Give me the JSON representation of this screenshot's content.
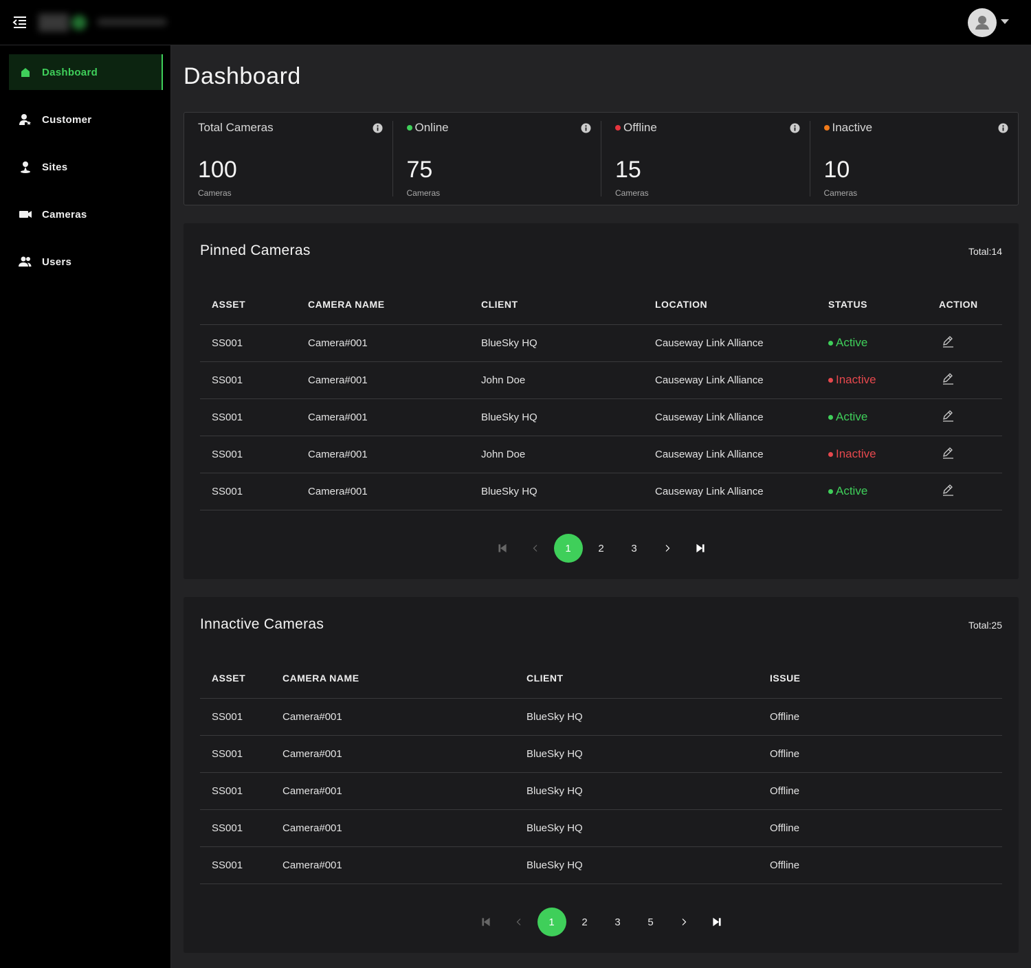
{
  "sidebar": {
    "items": [
      "Dashboard",
      "Customer",
      "Sites",
      "Cameras",
      "Users"
    ],
    "active": 0
  },
  "page": {
    "title": "Dashboard"
  },
  "stats": [
    {
      "label": "Total Cameras",
      "value": 100,
      "unit": "Cameras"
    },
    {
      "label": "Online",
      "value": 75,
      "unit": "Cameras",
      "dot": "#3fcf5a"
    },
    {
      "label": "Offline",
      "value": 15,
      "unit": "Cameras",
      "dot": "#e5343d"
    },
    {
      "label": "Inactive",
      "value": 10,
      "unit": "Cameras",
      "dot": "#f07a1a"
    }
  ],
  "status_colors": {
    "Active": "#3fcf5a",
    "Inactive": "#e5484d"
  },
  "pinned": {
    "title": "Pinned Cameras",
    "total": "Total:14",
    "columns": [
      "ASSET",
      "CAMERA NAME",
      "CLIENT",
      "LOCATION",
      "STATUS",
      "ACTION"
    ],
    "rows": [
      [
        "SS001",
        "Camera#001",
        "BlueSky HQ",
        "Causeway Link Alliance",
        "Active"
      ],
      [
        "SS001",
        "Camera#001",
        "John Doe",
        "Causeway Link Alliance",
        "Inactive"
      ],
      [
        "SS001",
        "Camera#001",
        "BlueSky HQ",
        "Causeway Link Alliance",
        "Active"
      ],
      [
        "SS001",
        "Camera#001",
        "John Doe",
        "Causeway Link Alliance",
        "Inactive"
      ],
      [
        "SS001",
        "Camera#001",
        "BlueSky HQ",
        "Causeway Link Alliance",
        "Active"
      ]
    ],
    "pages": [
      1,
      2,
      3
    ],
    "current_page": 1
  },
  "inactive": {
    "title": "Innactive Cameras",
    "total": "Total:25",
    "columns": [
      "ASSET",
      "CAMERA NAME",
      "CLIENT",
      "ISSUE"
    ],
    "rows": [
      [
        "SS001",
        "Camera#001",
        "BlueSky HQ",
        "Offline"
      ],
      [
        "SS001",
        "Camera#001",
        "BlueSky HQ",
        "Offline"
      ],
      [
        "SS001",
        "Camera#001",
        "BlueSky HQ",
        "Offline"
      ],
      [
        "SS001",
        "Camera#001",
        "BlueSky HQ",
        "Offline"
      ],
      [
        "SS001",
        "Camera#001",
        "BlueSky HQ",
        "Offline"
      ]
    ],
    "pages": [
      1,
      2,
      3,
      5
    ],
    "current_page": 1
  }
}
